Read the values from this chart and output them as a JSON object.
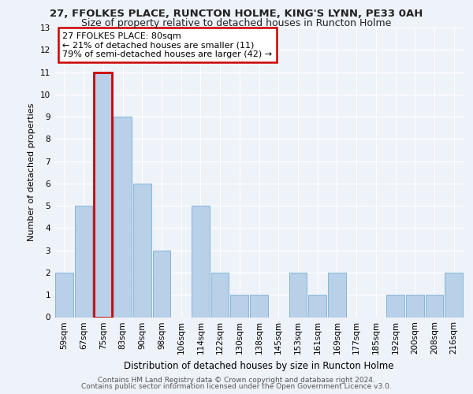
{
  "title_line1": "27, FFOLKES PLACE, RUNCTON HOLME, KING'S LYNN, PE33 0AH",
  "title_line2": "Size of property relative to detached houses in Runcton Holme",
  "xlabel": "Distribution of detached houses by size in Runcton Holme",
  "ylabel": "Number of detached properties",
  "categories": [
    "59sqm",
    "67sqm",
    "75sqm",
    "83sqm",
    "90sqm",
    "98sqm",
    "106sqm",
    "114sqm",
    "122sqm",
    "130sqm",
    "138sqm",
    "145sqm",
    "153sqm",
    "161sqm",
    "169sqm",
    "177sqm",
    "185sqm",
    "192sqm",
    "200sqm",
    "208sqm",
    "216sqm"
  ],
  "values": [
    2,
    5,
    11,
    9,
    6,
    3,
    0,
    5,
    2,
    1,
    1,
    0,
    2,
    1,
    2,
    0,
    0,
    1,
    1,
    1,
    2
  ],
  "bar_color": "#b8d0e8",
  "bar_edge_color": "#7aafd4",
  "highlight_bar_index": 2,
  "highlight_edge_color": "#cc0000",
  "annotation_text": "27 FFOLKES PLACE: 80sqm\n← 21% of detached houses are smaller (11)\n79% of semi-detached houses are larger (42) →",
  "annotation_box_color": "white",
  "annotation_box_edge_color": "#cc0000",
  "ylim": [
    0,
    13
  ],
  "yticks": [
    0,
    1,
    2,
    3,
    4,
    5,
    6,
    7,
    8,
    9,
    10,
    11,
    12,
    13
  ],
  "footer_line1": "Contains HM Land Registry data © Crown copyright and database right 2024.",
  "footer_line2": "Contains public sector information licensed under the Open Government Licence v3.0.",
  "bg_color": "#eef2f9",
  "plot_bg_color": "#eef2f9",
  "grid_color": "white",
  "title_fontsize": 9.5,
  "subtitle_fontsize": 9,
  "ylabel_fontsize": 8,
  "xlabel_fontsize": 8.5,
  "tick_fontsize": 7.5,
  "footer_fontsize": 6.5,
  "annotation_fontsize": 8
}
